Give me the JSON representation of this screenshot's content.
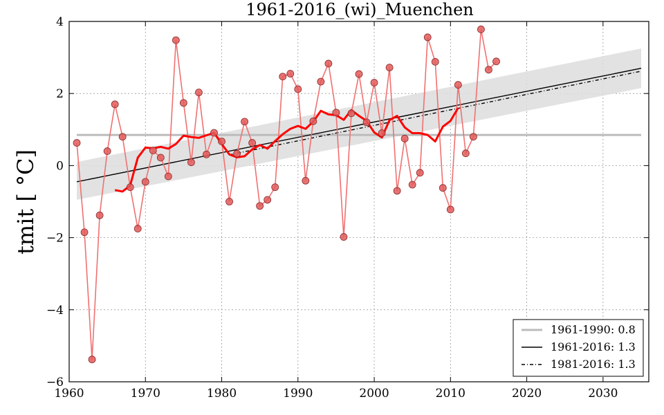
{
  "chart_data": {
    "type": "line",
    "title": "1961-2016_(wi)_Muenchen",
    "ylabel": "tmit [ °C]",
    "xlabel": "",
    "xlim": [
      1960,
      2036
    ],
    "ylim": [
      -6,
      4
    ],
    "xticks": [
      1960,
      1970,
      1980,
      1990,
      2000,
      2010,
      2020,
      2030
    ],
    "yticks": [
      -6,
      -4,
      -2,
      0,
      2,
      4
    ],
    "ytick_labels": [
      "−6",
      "−4",
      "−2",
      "0",
      "2",
      "4"
    ],
    "grid": true,
    "legend_position": "lower-right",
    "colors": {
      "observations": "#f07070",
      "marker_fill": "#e35a5a",
      "smoothed": "#ff0000",
      "mean_line": "#bbbbbb",
      "trend": "#000000",
      "band": "#dddddd"
    },
    "series": [
      {
        "kind": "observations",
        "x": [
          1961,
          1962,
          1963,
          1964,
          1965,
          1966,
          1967,
          1968,
          1969,
          1970,
          1971,
          1972,
          1973,
          1974,
          1975,
          1976,
          1977,
          1978,
          1979,
          1980,
          1981,
          1982,
          1983,
          1984,
          1985,
          1986,
          1987,
          1988,
          1989,
          1990,
          1991,
          1992,
          1993,
          1994,
          1995,
          1996,
          1997,
          1998,
          1999,
          2000,
          2001,
          2002,
          2003,
          2004,
          2005,
          2006,
          2007,
          2008,
          2009,
          2010,
          2011,
          2012,
          2013,
          2014,
          2015,
          2016
        ],
        "y": [
          0.63,
          -1.85,
          -5.38,
          -1.38,
          0.4,
          1.7,
          0.8,
          -0.6,
          -1.75,
          -0.45,
          0.42,
          0.22,
          -0.3,
          3.48,
          1.74,
          0.09,
          2.03,
          0.31,
          0.91,
          0.67,
          -1.0,
          0.33,
          1.22,
          0.63,
          -1.12,
          -0.95,
          -0.6,
          2.47,
          2.55,
          2.12,
          -0.42,
          1.23,
          2.33,
          2.83,
          1.47,
          -1.98,
          1.45,
          2.54,
          1.2,
          2.3,
          0.9,
          2.72,
          -0.7,
          0.75,
          -0.53,
          -0.2,
          3.56,
          2.88,
          -0.62,
          -1.22,
          2.24,
          0.34,
          0.8,
          3.78,
          2.66,
          2.89
        ]
      },
      {
        "kind": "smoothed",
        "x": [
          1966,
          1967,
          1968,
          1969,
          1970,
          1971,
          1972,
          1973,
          1974,
          1975,
          1976,
          1977,
          1978,
          1979,
          1980,
          1981,
          1982,
          1983,
          1984,
          1985,
          1986,
          1987,
          1988,
          1989,
          1990,
          1991,
          1992,
          1993,
          1994,
          1995,
          1996,
          1997,
          1998,
          1999,
          2000,
          2001,
          2002,
          2003,
          2004,
          2005,
          2006,
          2007,
          2008,
          2009,
          2010,
          2011
        ],
        "y": [
          -0.68,
          -0.72,
          -0.55,
          0.22,
          0.5,
          0.48,
          0.52,
          0.47,
          0.6,
          0.83,
          0.79,
          0.77,
          0.84,
          0.91,
          0.6,
          0.31,
          0.23,
          0.26,
          0.45,
          0.57,
          0.47,
          0.68,
          0.87,
          1.02,
          1.1,
          1.02,
          1.22,
          1.52,
          1.42,
          1.4,
          1.27,
          1.54,
          1.38,
          1.24,
          0.92,
          0.78,
          1.26,
          1.38,
          1.06,
          0.9,
          0.9,
          0.85,
          0.67,
          1.08,
          1.24,
          1.6
        ]
      },
      {
        "kind": "mean",
        "name": "1961-1990: 0.8",
        "x": [
          1961,
          2035
        ],
        "y": [
          0.85,
          0.85
        ]
      },
      {
        "kind": "trend",
        "name": "1961-2016: 1.3",
        "x": [
          1961,
          2035
        ],
        "y": [
          -0.45,
          2.7
        ]
      },
      {
        "kind": "trend-dashed",
        "name": "1981-2016: 1.3",
        "x": [
          1981,
          2035
        ],
        "y": [
          0.3,
          2.62
        ]
      },
      {
        "kind": "band",
        "x": [
          1961,
          2035
        ],
        "y_upper": [
          0.1,
          3.25
        ],
        "y_lower": [
          -0.95,
          2.15
        ]
      }
    ]
  }
}
